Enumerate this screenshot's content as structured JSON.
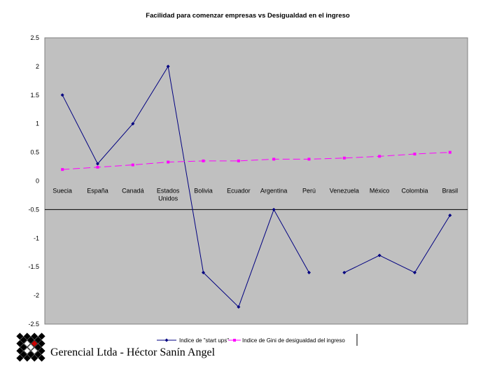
{
  "chart_data": {
    "type": "line",
    "title": "Facilidad para comenzar empresas vs Desigualdad en el ingreso",
    "categories": [
      [
        "Suecia"
      ],
      [
        "España"
      ],
      [
        "Canadá"
      ],
      [
        "Estados",
        "Unidos"
      ],
      [
        "Bolivia"
      ],
      [
        "Ecuador"
      ],
      [
        "Argentina"
      ],
      [
        "Perú"
      ],
      [
        "Venezuela"
      ],
      [
        "México"
      ],
      [
        "Colombia"
      ],
      [
        "Brasil"
      ]
    ],
    "ylim": [
      -2.5,
      2.5
    ],
    "yticks": [
      "2.5",
      "2",
      "1.5",
      "1",
      "0.5",
      "0",
      "-0.5",
      "-1",
      "-1.5",
      "-2",
      "-2.5"
    ],
    "reference_line": -0.5,
    "grid": false,
    "legend_position": "bottom",
    "series": [
      {
        "name": "Indice de \"start ups\"",
        "color": "#000080",
        "marker": "diamond",
        "values": [
          1.5,
          0.3,
          1.0,
          2.0,
          -1.6,
          -2.2,
          -0.5,
          -1.6,
          -1.6,
          -1.3,
          -1.6,
          -0.6
        ],
        "segments": [
          [
            0,
            7
          ],
          [
            8,
            11
          ]
        ]
      },
      {
        "name": "Indice de Gini de desigualdad del ingreso",
        "color": "#ff00ff",
        "marker": "square",
        "values": [
          0.2,
          0.24,
          0.28,
          0.33,
          0.35,
          0.35,
          0.38,
          0.38,
          0.4,
          0.43,
          0.47,
          0.5
        ],
        "segments": [
          [
            0,
            11
          ]
        ]
      }
    ]
  },
  "footer": {
    "text": "Gerencial Ltda - Héctor Sanín Angel"
  },
  "colors": {
    "plot_background": "#c0c0c0",
    "plot_border": "#808080",
    "logo_dark": "#000000",
    "logo_light": "#ffffff",
    "logo_accent": "#cc0000"
  }
}
